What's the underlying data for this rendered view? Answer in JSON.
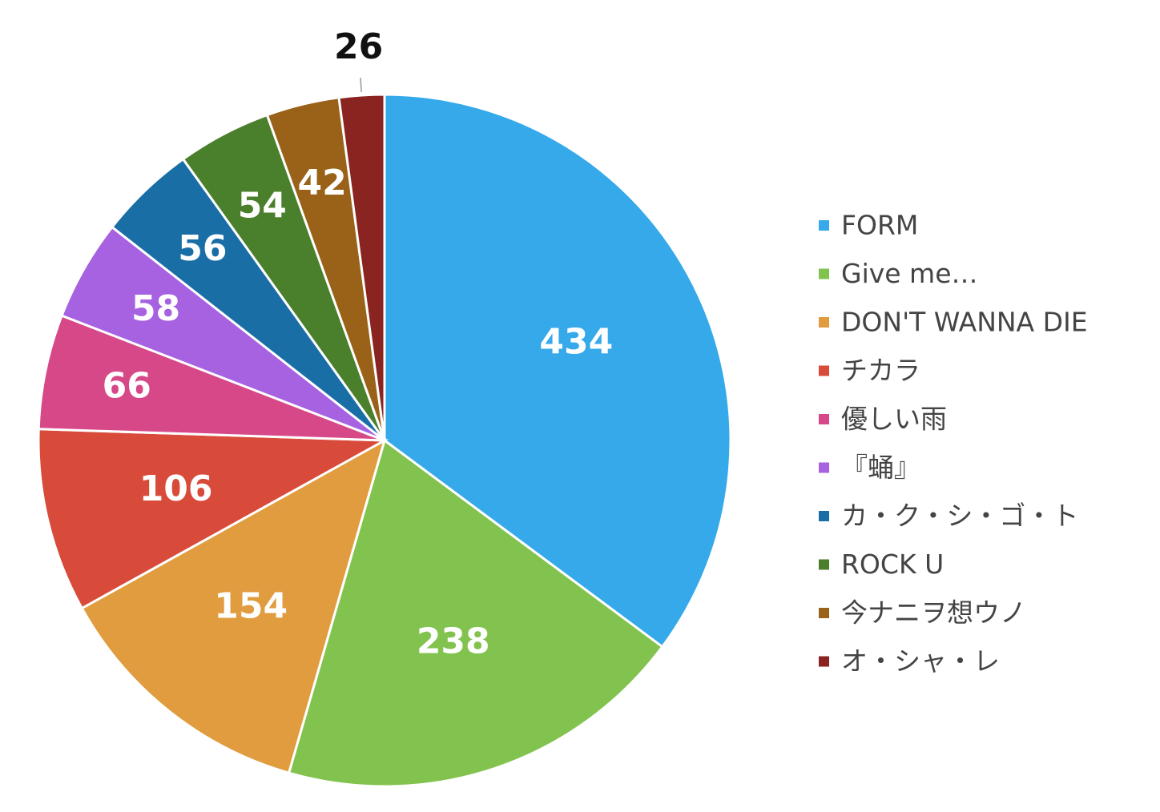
{
  "chart_data": {
    "type": "pie",
    "categories": [
      "FORM",
      "Give me…",
      "DON'T WANNA DIE",
      "チカラ",
      "優しい雨",
      "『蛹』",
      "カ・ク・シ・ゴ・ト",
      "ROCK U",
      "今ナニヲ想ウノ",
      "オ・シャ・レ"
    ],
    "values": [
      434,
      238,
      154,
      106,
      66,
      58,
      56,
      54,
      42,
      26
    ],
    "colors": [
      "#35a9ea",
      "#82c34f",
      "#e09c3e",
      "#d84b3b",
      "#d74889",
      "#a662e0",
      "#1a6ea6",
      "#4a7f2c",
      "#9a6118",
      "#8a2420"
    ],
    "legend": "right"
  }
}
